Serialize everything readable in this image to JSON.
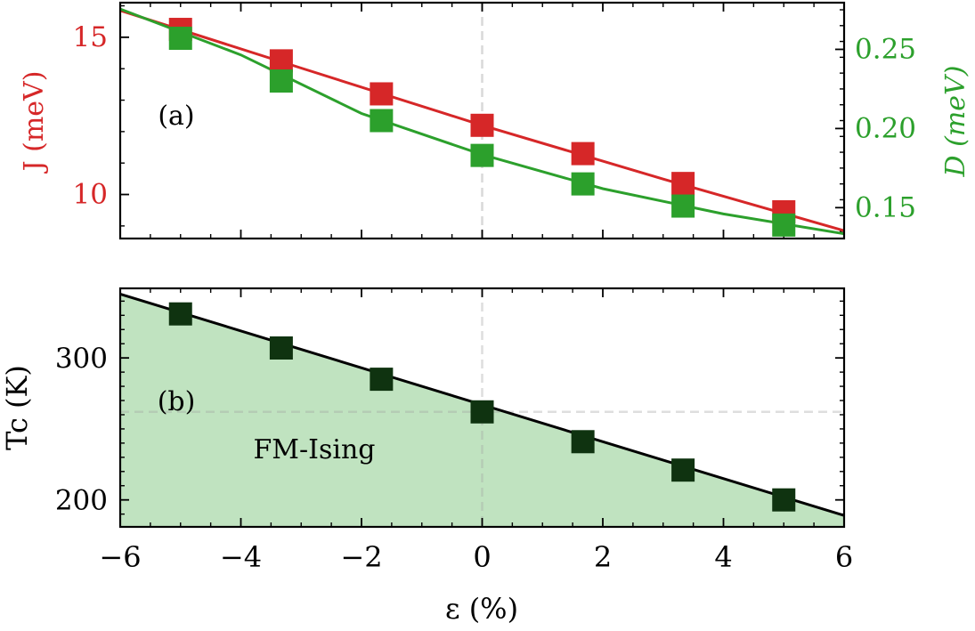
{
  "chart_data": [
    {
      "panel": "(a)",
      "type": "line",
      "xlim": [
        -6,
        6
      ],
      "x_ticks": [
        -6,
        -4,
        -2,
        0,
        2,
        4,
        6
      ],
      "grid": false,
      "reference_line_x": 0,
      "left_axis": {
        "label": "J (meV)",
        "color": "#d62728",
        "ylim": [
          8.6,
          16.1
        ],
        "ticks": [
          10,
          15
        ]
      },
      "right_axis": {
        "label": "D (meV)",
        "color": "#2ca02c",
        "ylim": [
          0.1305,
          0.2795
        ],
        "ticks": [
          0.15,
          0.2,
          0.25
        ],
        "tick_labels": [
          "0.15",
          "0.20",
          "0.25"
        ]
      },
      "series": [
        {
          "axis": "left",
          "color": "#d62728",
          "marker": "square",
          "x": [
            -5,
            -3.33,
            -1.67,
            0,
            1.67,
            3.33,
            5
          ],
          "y": [
            15.25,
            14.25,
            13.2,
            12.2,
            11.3,
            10.35,
            9.45
          ],
          "fit_line": {
            "x": [
              -6,
              -3,
              0,
              3,
              6
            ],
            "y": [
              15.85,
              14.02,
              12.2,
              10.49,
              8.85
            ]
          }
        },
        {
          "axis": "right",
          "color": "#2ca02c",
          "marker": "square",
          "x": [
            -5,
            -3.33,
            -1.67,
            0,
            1.67,
            3.33,
            5
          ],
          "y": [
            0.257,
            0.23,
            0.205,
            0.183,
            0.165,
            0.151,
            0.139
          ],
          "fit_line": {
            "x": [
              -6,
              -4,
              -2,
              0,
              2,
              4,
              6
            ],
            "y": [
              0.2755,
              0.2465,
              0.2095,
              0.1835,
              0.162,
              0.146,
              0.1335
            ]
          }
        }
      ]
    },
    {
      "panel": "(b)",
      "type": "area",
      "xlim": [
        -6,
        6
      ],
      "x_ticks": [
        -6,
        -4,
        -2,
        0,
        2,
        4,
        6
      ],
      "x_tick_labels": [
        "−6",
        "−4",
        "−2",
        "0",
        "2",
        "4",
        "6"
      ],
      "xlabel": "ε (%)",
      "ylabel": "Tc (K)",
      "ylim": [
        181,
        349
      ],
      "y_ticks": [
        200,
        300
      ],
      "grid": false,
      "reference_line_x": 0,
      "reference_line_y": 262,
      "fill_color": "#c0e3c0",
      "region_label": "FM-Ising",
      "series": [
        {
          "color": "#000000",
          "marker": "square",
          "marker_color": "#0f3310",
          "x": [
            -5,
            -3.33,
            -1.67,
            0,
            1.67,
            3.33,
            5
          ],
          "y": [
            331,
            307,
            285,
            262,
            241,
            221,
            200
          ],
          "fit_line": {
            "x": [
              -6,
              6
            ],
            "y": [
              345,
              189
            ]
          }
        }
      ]
    }
  ]
}
